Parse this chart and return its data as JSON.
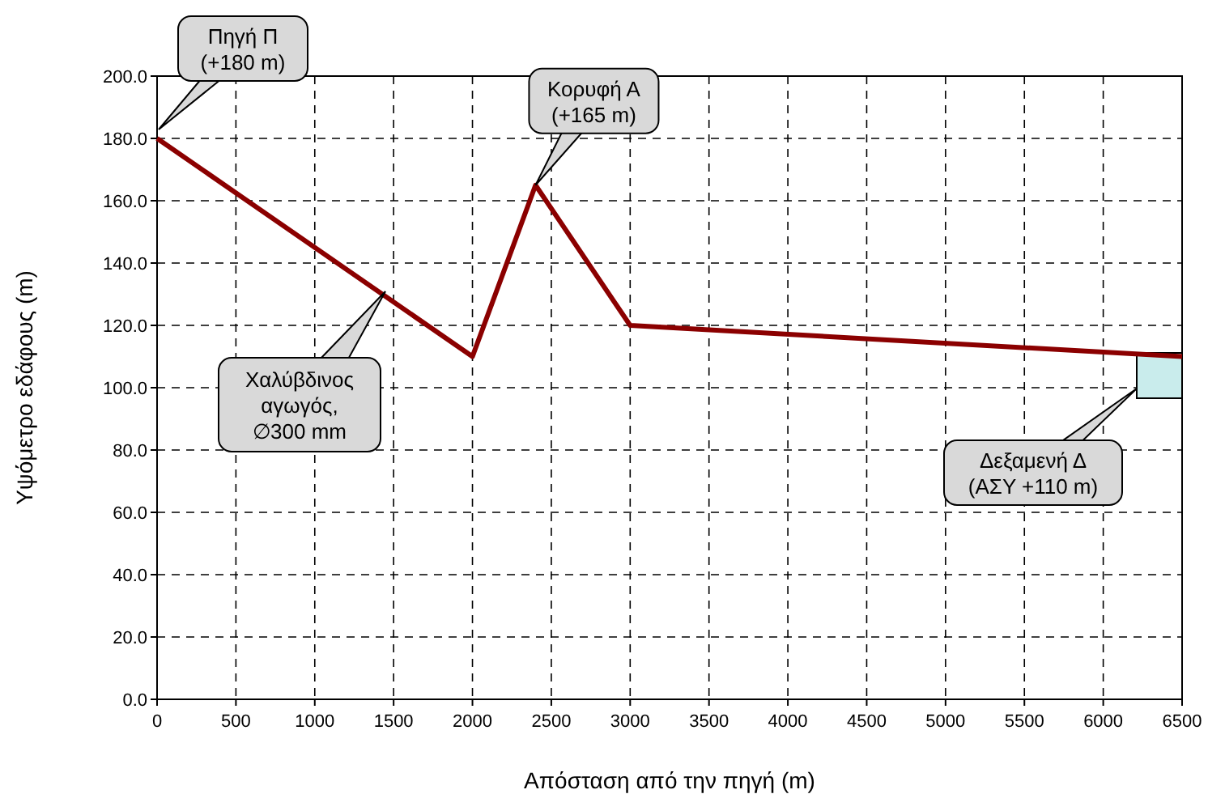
{
  "chart_data": {
    "type": "line",
    "xlabel": "Απόσταση από την πηγή (m)",
    "ylabel": "Υψόμετρο εδάφους (m)",
    "x": [
      0,
      2000,
      2400,
      3000,
      6500
    ],
    "series": [
      {
        "color": "#8b0000",
        "values": [
          180,
          110,
          165,
          120,
          110
        ]
      }
    ],
    "xlim": [
      0,
      6500
    ],
    "xticks": [
      0,
      500,
      1000,
      1500,
      2000,
      2500,
      3000,
      3500,
      4000,
      4500,
      5000,
      5500,
      6000,
      6500
    ],
    "ylim": [
      0,
      200
    ],
    "yticks": [
      {
        "value": 0,
        "label": "0.0"
      },
      {
        "value": 20,
        "label": "20.0"
      },
      {
        "value": 40,
        "label": "40.0"
      },
      {
        "value": 60,
        "label": "60.0"
      },
      {
        "value": 80,
        "label": "80.0"
      },
      {
        "value": 100,
        "label": "100.0"
      },
      {
        "value": 120,
        "label": "120.0"
      },
      {
        "value": 140,
        "label": "140.0"
      },
      {
        "value": 160,
        "label": "160.0"
      },
      {
        "value": 180,
        "label": "180.0"
      },
      {
        "value": 200,
        "label": "200.0"
      }
    ],
    "grid": true,
    "line_style": "solid",
    "marker": "none",
    "annotations": [
      "Πηγή Π\n(+180 m)",
      {
        "text": "Κορυφή Α\n(+165 m)",
        "x": 2400,
        "y": 165
      },
      "Χαλύβδινος\nαγωγός,\n∅300 mm",
      "Δεξαμενή Δ\n(ΑΣΥ +110 m)"
    ]
  }
}
